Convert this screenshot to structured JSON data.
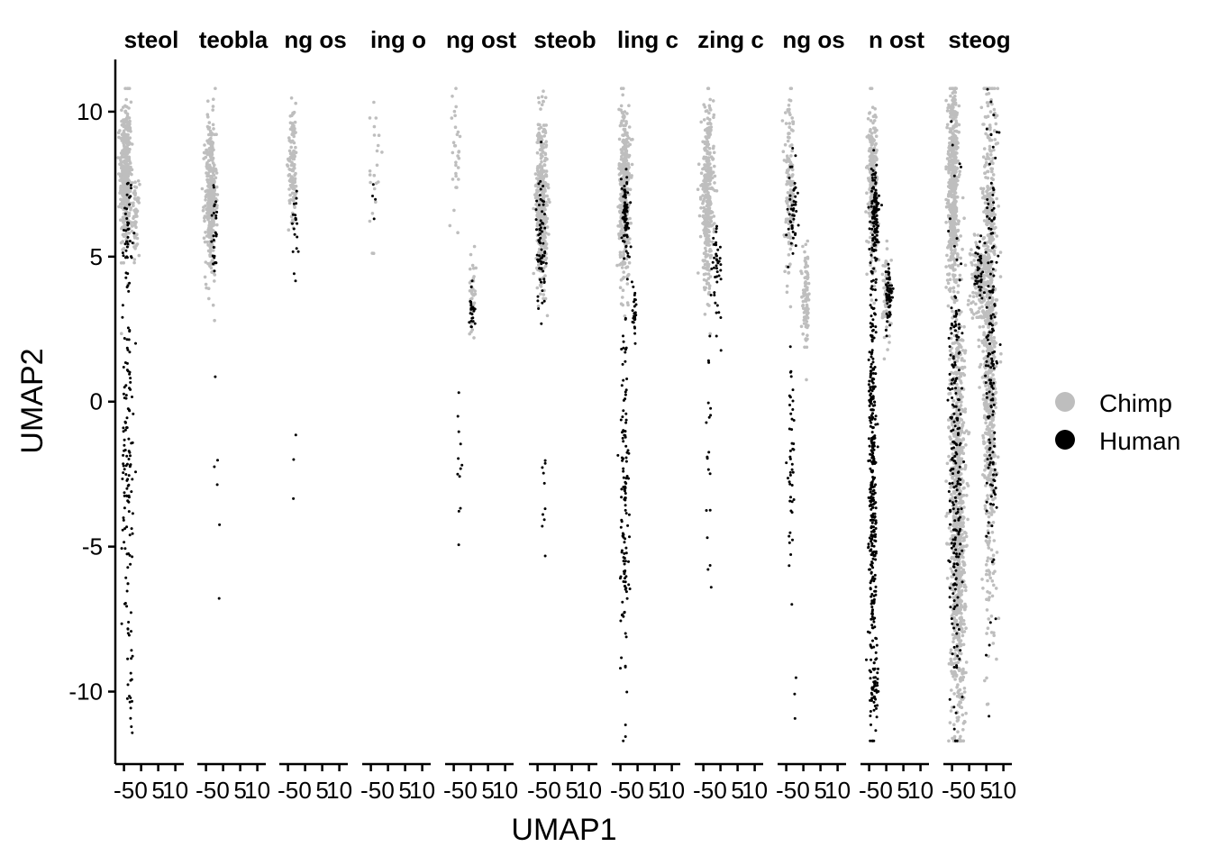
{
  "chart_data": {
    "type": "scatter",
    "xlabel": "UMAP1",
    "ylabel": "UMAP2",
    "ylim": [
      -12.5,
      11.8
    ],
    "xlim": [
      -7,
      13
    ],
    "y_ticks": [
      10,
      5,
      0,
      -5,
      -10
    ],
    "y_tick_labels": [
      "10",
      "5",
      "0",
      "-5",
      "-10"
    ],
    "x_ticks": [
      -5,
      0,
      5,
      10
    ],
    "x_tick_labels": [
      "-5",
      "0",
      "5",
      "10"
    ],
    "colors": {
      "Chimp": "#bebebe",
      "Human": "#000000"
    },
    "legend": {
      "position": "right",
      "entries": [
        "Chimp",
        "Human"
      ]
    },
    "grid": false,
    "panels": [
      {
        "title": "steol"
      },
      {
        "title": "teobla"
      },
      {
        "title": "ng os"
      },
      {
        "title": "ing o"
      },
      {
        "title": "ng ost"
      },
      {
        "title": "steob"
      },
      {
        "title": "ling c"
      },
      {
        "title": "zing c"
      },
      {
        "title": "ng os"
      },
      {
        "title": "n ost"
      },
      {
        "title": "steog"
      }
    ],
    "series": [
      {
        "name": "Chimp",
        "panel_clusters": [
          [
            {
              "x": -4.5,
              "y": 7.8,
              "sx": 0.8,
              "sy": 1.3,
              "n": 420
            },
            {
              "x": -1.5,
              "y": 6.3,
              "sx": 0.5,
              "sy": 0.6,
              "n": 60
            }
          ],
          [
            {
              "x": -3.6,
              "y": 7.0,
              "sx": 0.8,
              "sy": 1.4,
              "n": 380
            }
          ],
          [
            {
              "x": -3.6,
              "y": 8.3,
              "sx": 0.6,
              "sy": 1.0,
              "n": 130
            }
          ],
          [
            {
              "x": -4.0,
              "y": 8.0,
              "sx": 0.7,
              "sy": 1.4,
              "n": 22
            }
          ],
          [
            {
              "x": -4.2,
              "y": 8.6,
              "sx": 0.6,
              "sy": 1.2,
              "n": 30
            },
            {
              "x": 0.5,
              "y": 3.8,
              "sx": 0.5,
              "sy": 0.6,
              "n": 40
            }
          ],
          [
            {
              "x": -3.8,
              "y": 7.0,
              "sx": 0.8,
              "sy": 1.4,
              "n": 420
            }
          ],
          [
            {
              "x": -3.8,
              "y": 7.3,
              "sx": 0.8,
              "sy": 1.5,
              "n": 380
            }
          ],
          [
            {
              "x": -3.8,
              "y": 7.0,
              "sx": 0.9,
              "sy": 1.5,
              "n": 380
            }
          ],
          [
            {
              "x": -4.0,
              "y": 7.2,
              "sx": 0.7,
              "sy": 1.5,
              "n": 150
            },
            {
              "x": 0.8,
              "y": 3.5,
              "sx": 0.5,
              "sy": 0.8,
              "n": 90
            }
          ],
          [
            {
              "x": -4.0,
              "y": 7.6,
              "sx": 0.7,
              "sy": 1.3,
              "n": 260
            },
            {
              "x": 0.2,
              "y": 3.6,
              "sx": 0.6,
              "sy": 0.8,
              "n": 70
            }
          ],
          [
            {
              "x": -4.7,
              "y": 7.5,
              "sx": 0.8,
              "sy": 1.8,
              "n": 500
            },
            {
              "x": -3.3,
              "y": -4.0,
              "sx": 1.1,
              "sy": 4.0,
              "n": 900
            },
            {
              "x": 6.0,
              "y": 2.0,
              "sx": 1.0,
              "sy": 4.5,
              "n": 800
            },
            {
              "x": 3.0,
              "y": 4.2,
              "sx": 1.2,
              "sy": 0.8,
              "n": 150
            }
          ]
        ]
      },
      {
        "name": "Human",
        "panel_clusters": [
          [
            {
              "x": -4.0,
              "y": -2.0,
              "sx": 0.8,
              "sy": 3.0,
              "n": 120
            },
            {
              "x": -3.8,
              "y": 6.0,
              "sx": 0.6,
              "sy": 1.0,
              "n": 40
            },
            {
              "x": -3.0,
              "y": -9.5,
              "sx": 0.4,
              "sy": 1.0,
              "n": 20
            }
          ],
          [
            {
              "x": -2.4,
              "y": 5.8,
              "sx": 0.6,
              "sy": 0.8,
              "n": 25
            },
            {
              "x": -1.5,
              "y": -3.0,
              "sx": 0.8,
              "sy": 2.5,
              "n": 6
            }
          ],
          [
            {
              "x": -2.7,
              "y": 6.2,
              "sx": 0.6,
              "sy": 0.9,
              "n": 20
            },
            {
              "x": -3.5,
              "y": -3.0,
              "sx": 0.4,
              "sy": 1.2,
              "n": 3
            }
          ],
          [
            {
              "x": -4.0,
              "y": 7.0,
              "sx": 0.5,
              "sy": 0.8,
              "n": 4
            }
          ],
          [
            {
              "x": -3.5,
              "y": -2.6,
              "sx": 0.5,
              "sy": 1.6,
              "n": 12
            },
            {
              "x": 0.3,
              "y": 3.2,
              "sx": 0.4,
              "sy": 0.4,
              "n": 25
            }
          ],
          [
            {
              "x": -4.0,
              "y": 5.5,
              "sx": 0.7,
              "sy": 1.2,
              "n": 70
            },
            {
              "x": -3.0,
              "y": -3.0,
              "sx": 0.5,
              "sy": 2.0,
              "n": 10
            }
          ],
          [
            {
              "x": -3.8,
              "y": -3.5,
              "sx": 0.6,
              "sy": 3.5,
              "n": 130
            },
            {
              "x": -3.5,
              "y": 6.4,
              "sx": 0.6,
              "sy": 0.8,
              "n": 70
            },
            {
              "x": -0.8,
              "y": 3.0,
              "sx": 0.3,
              "sy": 0.4,
              "n": 25
            }
          ],
          [
            {
              "x": -3.5,
              "y": -2.5,
              "sx": 0.5,
              "sy": 2.5,
              "n": 20
            },
            {
              "x": -1.0,
              "y": 4.5,
              "sx": 0.7,
              "sy": 0.8,
              "n": 40
            }
          ],
          [
            {
              "x": -3.6,
              "y": -1.8,
              "sx": 0.6,
              "sy": 2.0,
              "n": 45
            },
            {
              "x": -3.0,
              "y": 6.5,
              "sx": 0.6,
              "sy": 0.8,
              "n": 45
            },
            {
              "x": -2.5,
              "y": -10.5,
              "sx": 0.3,
              "sy": 0.5,
              "n": 3
            }
          ],
          [
            {
              "x": -4.0,
              "y": -3.0,
              "sx": 0.5,
              "sy": 4.0,
              "n": 380
            },
            {
              "x": -3.3,
              "y": 6.5,
              "sx": 0.6,
              "sy": 0.8,
              "n": 110
            },
            {
              "x": 0.8,
              "y": 3.6,
              "sx": 0.5,
              "sy": 0.6,
              "n": 60
            },
            {
              "x": -3.0,
              "y": -10.0,
              "sx": 0.4,
              "sy": 1.0,
              "n": 30
            }
          ],
          [
            {
              "x": -4.0,
              "y": -3.0,
              "sx": 1.0,
              "sy": 4.0,
              "n": 220
            },
            {
              "x": 6.5,
              "y": 1.5,
              "sx": 0.8,
              "sy": 4.0,
              "n": 160
            },
            {
              "x": 3.0,
              "y": 4.6,
              "sx": 0.6,
              "sy": 0.5,
              "n": 40
            }
          ]
        ]
      }
    ]
  }
}
